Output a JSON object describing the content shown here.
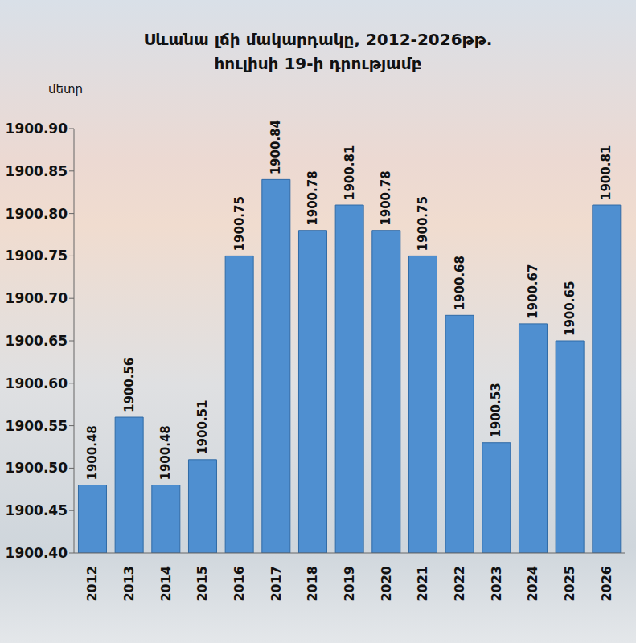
{
  "chart_data": {
    "type": "bar",
    "title": "Սևանա լճի մակարդակը, 2012-2026թթ.",
    "subtitle": "հուլիսի 19-ի դրությամբ",
    "y_label": "մետր",
    "categories": [
      "2012",
      "2013",
      "2014",
      "2015",
      "2016",
      "2017",
      "2018",
      "2019",
      "2020",
      "2021",
      "2022",
      "2023",
      "2024",
      "2025",
      "2026"
    ],
    "values": [
      1900.48,
      1900.56,
      1900.48,
      1900.51,
      1900.75,
      1900.84,
      1900.78,
      1900.81,
      1900.78,
      1900.75,
      1900.68,
      1900.53,
      1900.67,
      1900.65,
      1900.81
    ],
    "color": "#4f8fd0",
    "ylim": [
      1900.4,
      1900.9
    ],
    "yticks": [
      {
        "value": 1900.4,
        "label": "1900.40"
      },
      1900.45,
      {
        "value": 1900.5,
        "label": "1900.50"
      },
      1900.55,
      {
        "value": 1900.6,
        "label": "1900.60"
      },
      1900.65,
      {
        "value": 1900.7,
        "label": "1900.70"
      },
      1900.75,
      {
        "value": 1900.8,
        "label": "1900.80"
      },
      1900.85,
      {
        "value": 1900.9,
        "label": "1900.90"
      }
    ],
    "grid": false,
    "data_labels": true
  }
}
